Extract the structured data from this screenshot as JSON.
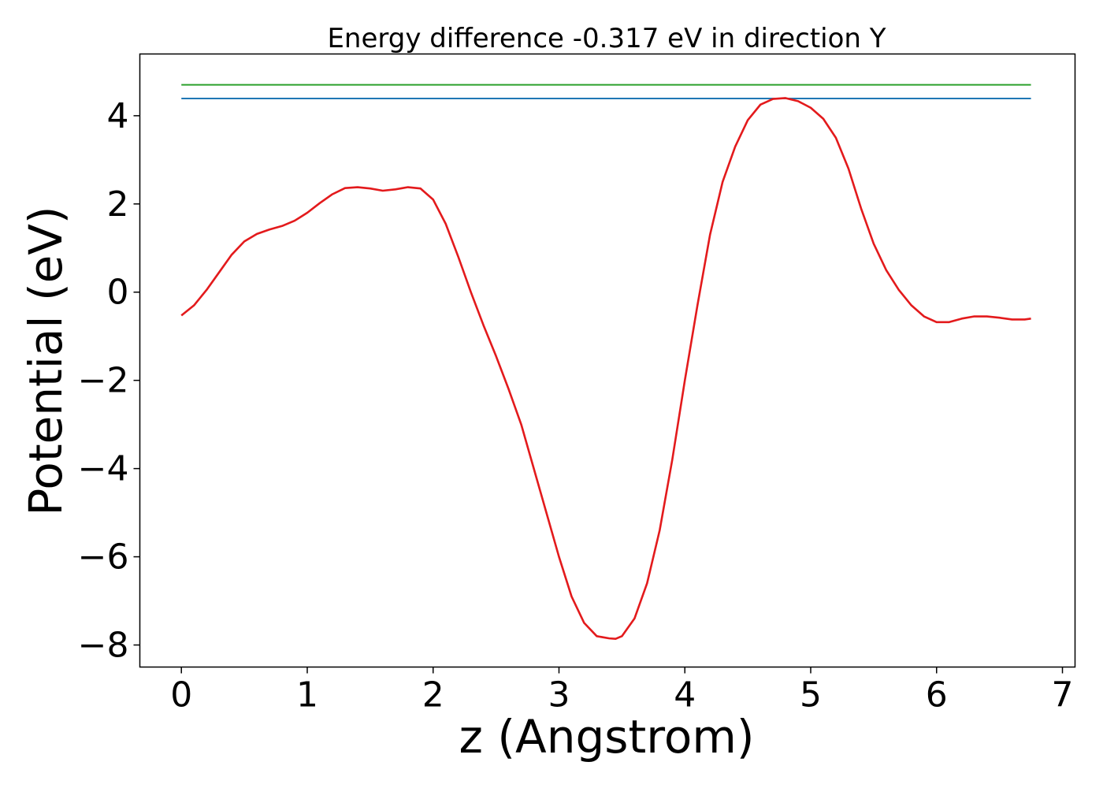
{
  "chart_data": {
    "type": "line",
    "title": "Energy difference -0.317 eV in direction Y",
    "xlabel": "z (Angstrom)",
    "ylabel": "Potential (eV)",
    "xlim": [
      -0.33,
      7.1
    ],
    "ylim": [
      -8.5,
      5.4
    ],
    "xticks": [
      0,
      1,
      2,
      3,
      4,
      5,
      6,
      7
    ],
    "xtick_labels": [
      "0",
      "1",
      "2",
      "3",
      "4",
      "5",
      "6",
      "7"
    ],
    "yticks": [
      -8,
      -6,
      -4,
      -2,
      0,
      2,
      4
    ],
    "ytick_labels": [
      "−8",
      "−6",
      "−4",
      "−2",
      "0",
      "2",
      "4"
    ],
    "grid": false,
    "legend": false,
    "series": [
      {
        "color": "#2ca02c",
        "x": [
          0,
          6.75
        ],
        "y": [
          4.7,
          4.7
        ]
      },
      {
        "color": "#1f77b4",
        "x": [
          0,
          6.75
        ],
        "y": [
          4.39,
          4.39
        ]
      },
      {
        "color": "#e31a1c",
        "x": [
          0,
          0.1,
          0.2,
          0.3,
          0.4,
          0.5,
          0.6,
          0.7,
          0.8,
          0.9,
          1.0,
          1.1,
          1.2,
          1.3,
          1.4,
          1.5,
          1.6,
          1.7,
          1.8,
          1.9,
          2.0,
          2.1,
          2.2,
          2.3,
          2.4,
          2.5,
          2.6,
          2.7,
          2.8,
          2.9,
          3.0,
          3.1,
          3.2,
          3.3,
          3.4,
          3.45,
          3.5,
          3.6,
          3.7,
          3.8,
          3.9,
          4.0,
          4.1,
          4.2,
          4.3,
          4.4,
          4.5,
          4.6,
          4.7,
          4.8,
          4.9,
          5.0,
          5.1,
          5.2,
          5.3,
          5.4,
          5.5,
          5.6,
          5.7,
          5.8,
          5.9,
          6.0,
          6.1,
          6.2,
          6.3,
          6.4,
          6.5,
          6.6,
          6.7,
          6.75
        ],
        "y": [
          -0.53,
          -0.3,
          0.05,
          0.45,
          0.85,
          1.15,
          1.32,
          1.42,
          1.5,
          1.62,
          1.8,
          2.02,
          2.22,
          2.36,
          2.38,
          2.35,
          2.3,
          2.33,
          2.38,
          2.35,
          2.1,
          1.55,
          0.8,
          0.0,
          -0.75,
          -1.45,
          -2.2,
          -3.0,
          -4.0,
          -5.0,
          -6.0,
          -6.9,
          -7.5,
          -7.8,
          -7.85,
          -7.86,
          -7.8,
          -7.4,
          -6.6,
          -5.4,
          -3.8,
          -2.0,
          -0.3,
          1.3,
          2.5,
          3.3,
          3.9,
          4.25,
          4.38,
          4.4,
          4.33,
          4.18,
          3.93,
          3.5,
          2.8,
          1.9,
          1.1,
          0.5,
          0.05,
          -0.3,
          -0.55,
          -0.68,
          -0.68,
          -0.6,
          -0.55,
          -0.55,
          -0.58,
          -0.62,
          -0.62,
          -0.6
        ]
      }
    ]
  }
}
